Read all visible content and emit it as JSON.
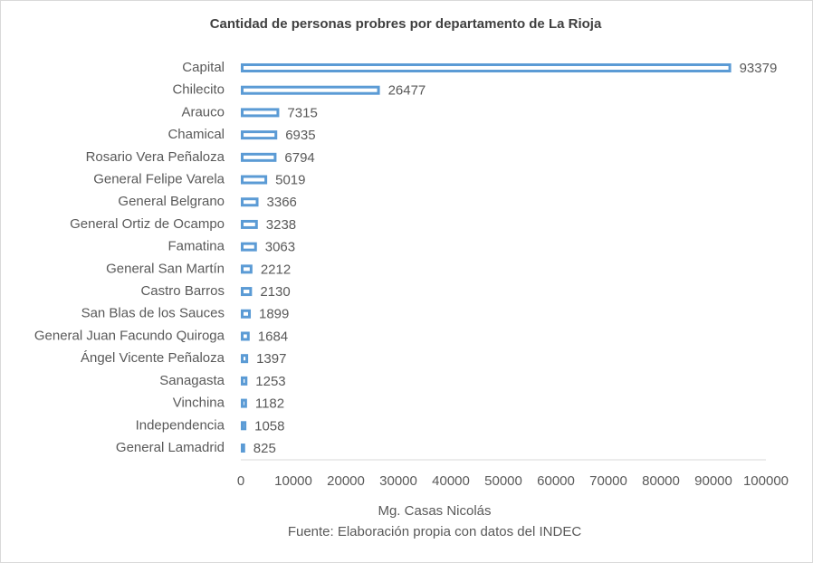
{
  "chart_data": {
    "type": "barh",
    "title": "Cantidad de personas probres por departamento de La Rioja",
    "xlabel": "Mg. Casas Nicolás",
    "source": "Fuente: Elaboración propia con datos del INDEC",
    "categories": [
      "Capital",
      "Chilecito",
      "Arauco",
      "Chamical",
      "Rosario Vera Peñaloza",
      "General Felipe Varela",
      "General Belgrano",
      "General Ortiz de Ocampo",
      "Famatina",
      "General San Martín",
      "Castro Barros",
      "San Blas de los Sauces",
      "General Juan Facundo Quiroga",
      "Ángel Vicente Peñaloza",
      "Sanagasta",
      "Vinchina",
      "Independencia",
      "General Lamadrid"
    ],
    "values": [
      93379,
      26477,
      7315,
      6935,
      6794,
      5019,
      3366,
      3238,
      3063,
      2212,
      2130,
      1899,
      1684,
      1397,
      1253,
      1182,
      1058,
      825
    ],
    "color": "#5b9bd5",
    "xlim": [
      0,
      100000
    ],
    "xticks": [
      0,
      10000,
      20000,
      30000,
      40000,
      50000,
      60000,
      70000,
      80000,
      90000,
      100000
    ],
    "grid": false
  }
}
